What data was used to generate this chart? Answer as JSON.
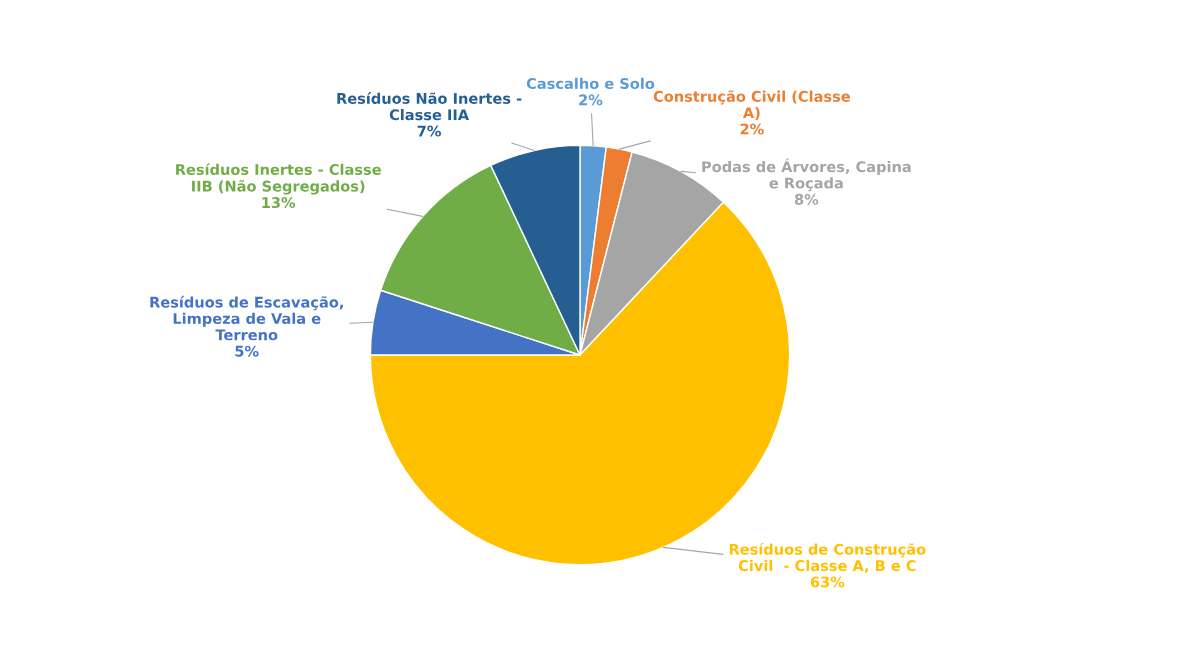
{
  "chart_data": {
    "type": "pie",
    "categories": [
      "Cascalho e Solo",
      "Construção Civil (Classe\nA)",
      "Podas de Árvores, Capina\ne Roçada",
      "Resíduos de Construção\nCivil  - Classe A, B e C",
      "Resíduos de Escavação,\nLimpeza de Vala e\nTerreno",
      "Resíduos Inertes - Classe\nIIB (Não Segregados)",
      "Resíduos Não Inertes -\nClasse IIA"
    ],
    "values": [
      2,
      2,
      8,
      63,
      5,
      13,
      7
    ],
    "value_labels": [
      "2%",
      "2%",
      "8%",
      "63%",
      "5%",
      "13%",
      "7%"
    ],
    "colors": [
      "#5b9bd5",
      "#ed7d31",
      "#a5a5a5",
      "#ffc000",
      "#4472c4",
      "#70ad47",
      "#255e91"
    ],
    "legend": false
  }
}
